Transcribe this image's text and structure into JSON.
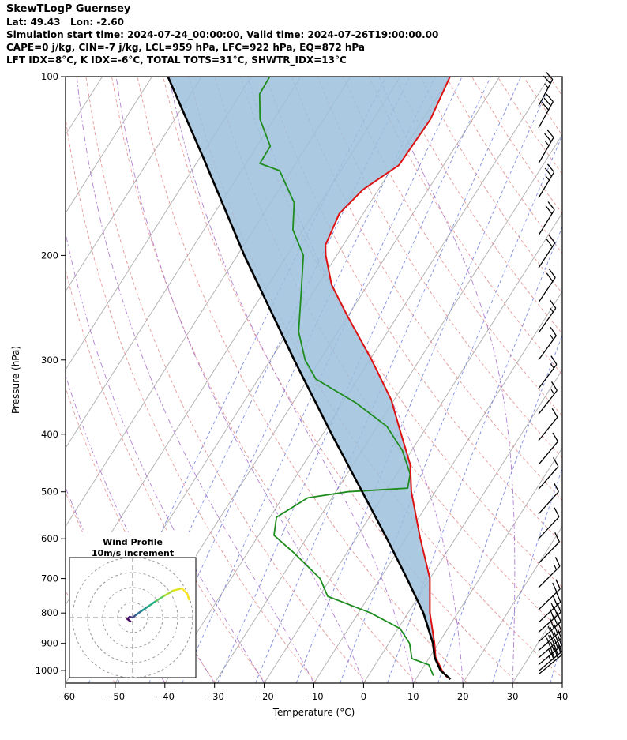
{
  "header": {
    "title": "SkewTLogP Guernsey",
    "location": "Lat: 49.43   Lon: -2.60",
    "sim_time": "Simulation start time: 2024-07-24_00:00:00, Valid time: 2024-07-26T19:00:00.00",
    "indices_line1": "CAPE=0 j/kg, CIN=-7 j/kg, LCL=959 hPa, LFC=922 hPa, EQ=872 hPa",
    "indices_line2": "LFT IDX=8°C, K IDX=-6°C, TOTAL TOTS=31°C, SHWTR_IDX=13°C"
  },
  "chart_data": {
    "type": "line",
    "variant": "skew-t-log-p",
    "title": "SkewTLogP Guernsey",
    "xlabel": "Temperature (°C)",
    "ylabel": "Pressure (hPa)",
    "xlim": [
      -60,
      40
    ],
    "p_range": [
      100,
      1050
    ],
    "temp_ticks": [
      -60,
      -50,
      -40,
      -30,
      -20,
      -10,
      0,
      10,
      20,
      30,
      40
    ],
    "pressure_ticks": [
      100,
      200,
      300,
      400,
      500,
      600,
      700,
      800,
      900,
      1000
    ],
    "grid": {
      "isotherm_color": "#b4b4b4",
      "isotherms_c": {
        "min": -140,
        "max": 40,
        "step": 10
      },
      "dry_adiabat_color": "#e07d7d",
      "dry_adiabats_thetaK": {
        "min": 210,
        "max": 460,
        "step": 10
      },
      "mixing_ratio_color": "#6372d8",
      "mixing_ratios_gkg": [
        0.02,
        0.04,
        0.08,
        0.16,
        0.32,
        0.64,
        1.28,
        2.56,
        5.12,
        10.24,
        20.48,
        40.96
      ],
      "moist_adiabat_color": "#9f62c6",
      "moist_adiabats_startC": [
        -40,
        -30,
        -20,
        -10,
        0,
        10,
        20,
        30
      ]
    },
    "series": [
      {
        "name": "temperature",
        "color": "#dd1111",
        "points": [
          [
            100,
            -60
          ],
          [
            118,
            -58.5
          ],
          [
            141,
            -59
          ],
          [
            155,
            -63.1
          ],
          [
            170,
            -64.8
          ],
          [
            192,
            -63.6
          ],
          [
            200,
            -62.2
          ],
          [
            224,
            -57.3
          ],
          [
            253,
            -50.1
          ],
          [
            300,
            -39.6
          ],
          [
            350,
            -30.6
          ],
          [
            400,
            -24.2
          ],
          [
            450,
            -18.5
          ],
          [
            500,
            -14.8
          ],
          [
            600,
            -7
          ],
          [
            700,
            0
          ],
          [
            800,
            4.4
          ],
          [
            900,
            9.2
          ],
          [
            950,
            11.2
          ],
          [
            1000,
            14.2
          ],
          [
            1030,
            16.3
          ]
        ]
      },
      {
        "name": "dewpoint",
        "color": "#1e8c1e",
        "points": [
          [
            100,
            -96.3
          ],
          [
            107,
            -96.1
          ],
          [
            118,
            -92.8
          ],
          [
            131,
            -87.3
          ],
          [
            140,
            -87.2
          ],
          [
            144,
            -82.3
          ],
          [
            163,
            -75.3
          ],
          [
            181,
            -72.1
          ],
          [
            200,
            -66.7
          ],
          [
            231,
            -62.4
          ],
          [
            269,
            -57.9
          ],
          [
            300,
            -53
          ],
          [
            323,
            -48.4
          ],
          [
            354,
            -37.4
          ],
          [
            388,
            -28.1
          ],
          [
            426,
            -21.9
          ],
          [
            467,
            -17.3
          ],
          [
            493,
            -16
          ],
          [
            500,
            -27.6
          ],
          [
            512,
            -34.9
          ],
          [
            552,
            -38.7
          ],
          [
            592,
            -36.9
          ],
          [
            634,
            -30.6
          ],
          [
            700,
            -22.1
          ],
          [
            750,
            -18.3
          ],
          [
            800,
            -7.5
          ],
          [
            850,
            0.4
          ],
          [
            900,
            4.2
          ],
          [
            955,
            6.6
          ],
          [
            978,
            10.8
          ],
          [
            1020,
            13.1
          ]
        ]
      },
      {
        "name": "parcel",
        "color": "#000000",
        "points": [
          [
            100,
            -116.8
          ],
          [
            137,
            -99.3
          ],
          [
            200,
            -78.6
          ],
          [
            300,
            -55.2
          ],
          [
            400,
            -38.2
          ],
          [
            500,
            -24.7
          ],
          [
            600,
            -13.7
          ],
          [
            700,
            -4.6
          ],
          [
            800,
            3.1
          ],
          [
            900,
            8.9
          ],
          [
            950,
            11
          ],
          [
            1000,
            13.9
          ],
          [
            1034,
            17
          ]
        ]
      }
    ],
    "cape_shading": {
      "between": [
        "parcel",
        "temperature"
      ],
      "color": "#9cc0da"
    },
    "wind_barbs": {
      "color": "#000000",
      "levels": [
        {
          "p": 112,
          "kt": 25,
          "dir": 28
        },
        {
          "p": 122,
          "kt": 30,
          "dir": 29
        },
        {
          "p": 140,
          "kt": 25,
          "dir": 30
        },
        {
          "p": 160,
          "kt": 25,
          "dir": 31
        },
        {
          "p": 185,
          "kt": 20,
          "dir": 32
        },
        {
          "p": 210,
          "kt": 20,
          "dir": 33
        },
        {
          "p": 240,
          "kt": 20,
          "dir": 34
        },
        {
          "p": 270,
          "kt": 15,
          "dir": 35
        },
        {
          "p": 300,
          "kt": 15,
          "dir": 36
        },
        {
          "p": 335,
          "kt": 15,
          "dir": 37
        },
        {
          "p": 370,
          "kt": 15,
          "dir": 38
        },
        {
          "p": 410,
          "kt": 10,
          "dir": 39
        },
        {
          "p": 450,
          "kt": 10,
          "dir": 40
        },
        {
          "p": 495,
          "kt": 10,
          "dir": 41
        },
        {
          "p": 545,
          "kt": 10,
          "dir": 42
        },
        {
          "p": 600,
          "kt": 10,
          "dir": 43
        },
        {
          "p": 660,
          "kt": 10,
          "dir": 44
        },
        {
          "p": 725,
          "kt": 15,
          "dir": 45
        },
        {
          "p": 790,
          "kt": 20,
          "dir": 46
        },
        {
          "p": 830,
          "kt": 25,
          "dir": 47
        },
        {
          "p": 862,
          "kt": 30,
          "dir": 48
        },
        {
          "p": 895,
          "kt": 35,
          "dir": 48
        },
        {
          "p": 925,
          "kt": 35,
          "dir": 49
        },
        {
          "p": 952,
          "kt": 40,
          "dir": 49
        },
        {
          "p": 978,
          "kt": 35,
          "dir": 50
        },
        {
          "p": 1002,
          "kt": 35,
          "dir": 50
        },
        {
          "p": 1015,
          "kt": 30,
          "dir": 50
        }
      ]
    },
    "hodograph": {
      "title": "Wind Profile",
      "subtitle": "10m/s increment",
      "ring_increment_ms": 10,
      "rings_ms": [
        10,
        20,
        30,
        40
      ],
      "trace_uv_ms": [
        {
          "u": -1.5,
          "v": -2.5,
          "color": "#440154"
        },
        {
          "u": -3.5,
          "v": -1.0,
          "color": "#46085c"
        },
        {
          "u": -2.0,
          "v": 0.5,
          "color": "#471063"
        },
        {
          "u": 0.0,
          "v": 0.0,
          "color": "#472d7b"
        },
        {
          "u": 2.5,
          "v": 2.0,
          "color": "#3b528b"
        },
        {
          "u": 6.0,
          "v": 4.5,
          "color": "#2c728e"
        },
        {
          "u": 10.5,
          "v": 7.5,
          "color": "#21918c"
        },
        {
          "u": 15.5,
          "v": 11.0,
          "color": "#27ad81"
        },
        {
          "u": 21.0,
          "v": 14.5,
          "color": "#5ec962"
        },
        {
          "u": 27.0,
          "v": 18.0,
          "color": "#aadc32"
        },
        {
          "u": 33.0,
          "v": 19.5,
          "color": "#dfe318"
        },
        {
          "u": 36.5,
          "v": 15.5,
          "color": "#fde725"
        },
        {
          "u": 37.5,
          "v": 12.0,
          "color": "#fde725"
        }
      ]
    }
  }
}
